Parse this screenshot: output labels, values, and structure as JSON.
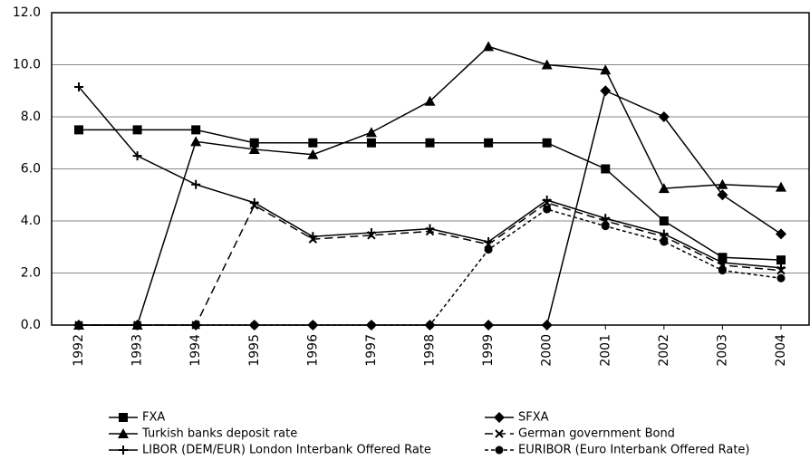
{
  "chart_data": {
    "type": "line",
    "categories": [
      "1992",
      "1993",
      "1994",
      "1995",
      "1996",
      "1997",
      "1998",
      "1999",
      "2000",
      "2001",
      "2002",
      "2003",
      "2004"
    ],
    "series": [
      {
        "name": "FXA",
        "color": "#000000",
        "marker": "square",
        "dash": "solid",
        "values": [
          7.5,
          7.5,
          7.5,
          7.0,
          7.0,
          7.0,
          7.0,
          7.0,
          7.0,
          6.0,
          4.0,
          2.6,
          2.5
        ]
      },
      {
        "name": "SFXA",
        "color": "#000000",
        "marker": "diamond",
        "dash": "solid",
        "values": [
          0,
          0,
          0,
          0,
          0,
          0,
          0,
          0,
          0,
          9.0,
          8.0,
          5.0,
          3.5
        ]
      },
      {
        "name": "Turkish banks deposit rate",
        "color": "#000000",
        "marker": "triangle",
        "dash": "solid",
        "values": [
          0,
          0,
          7.05,
          6.75,
          6.55,
          7.4,
          8.6,
          10.7,
          10.0,
          9.8,
          5.25,
          5.4,
          5.3
        ]
      },
      {
        "name": "German government Bond",
        "color": "#000000",
        "marker": "x",
        "dash": "dashed",
        "values": [
          0,
          0,
          0,
          4.6,
          3.3,
          3.45,
          3.6,
          3.1,
          4.7,
          4.0,
          3.4,
          2.3,
          2.1
        ]
      },
      {
        "name": "LIBOR (DEM/EUR) London Interbank Offered Rate",
        "color": "#000000",
        "marker": "plus",
        "dash": "solid",
        "values": [
          9.15,
          6.5,
          5.4,
          4.7,
          3.4,
          3.55,
          3.7,
          3.2,
          4.8,
          4.1,
          3.5,
          2.4,
          2.2
        ]
      },
      {
        "name": "EURIBOR (Euro Interbank Offered Rate)",
        "color": "#000000",
        "marker": "circle",
        "dash": "dotted",
        "values": [
          0,
          0,
          0,
          0,
          0,
          0,
          0,
          2.9,
          4.45,
          3.8,
          3.2,
          2.1,
          1.8
        ]
      }
    ],
    "ylim": [
      0,
      12
    ],
    "yticks": [
      {
        "value": 0,
        "label": "0.0"
      },
      {
        "value": 2,
        "label": "2.0"
      },
      {
        "value": 4,
        "label": "4.0"
      },
      {
        "value": 6,
        "label": "6.0"
      },
      {
        "value": 8,
        "label": "8.0"
      },
      {
        "value": 10,
        "label": "10.0"
      },
      {
        "value": 12,
        "label": "12.0"
      }
    ],
    "grid": true
  }
}
